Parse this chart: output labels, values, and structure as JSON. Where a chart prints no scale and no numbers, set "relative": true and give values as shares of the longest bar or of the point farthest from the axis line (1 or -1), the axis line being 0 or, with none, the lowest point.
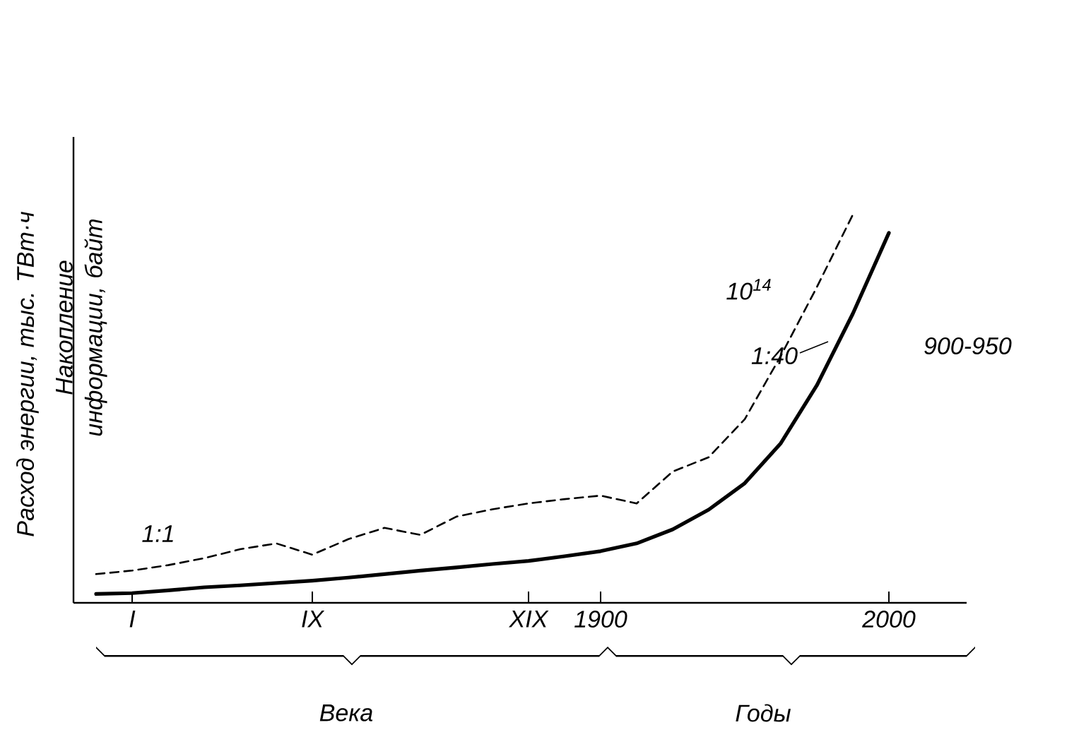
{
  "chart_data": {
    "type": "line",
    "relative": true,
    "ylabel": "Расход энергии, тыс. ТВт·ч",
    "y2label": "Накопление информации, байт",
    "categories": [
      null,
      "I",
      null,
      null,
      null,
      null,
      "IX",
      null,
      null,
      null,
      null,
      null,
      "XIX",
      null,
      "1900",
      null,
      null,
      null,
      null,
      null,
      null,
      null,
      "2000"
    ],
    "series": [
      {
        "color": "#000000",
        "line_style": "solid",
        "values": [
          0.023,
          0.025,
          0.032,
          0.04,
          0.045,
          0.051,
          0.057,
          0.065,
          0.074,
          0.083,
          0.091,
          0.1,
          0.108,
          0.12,
          0.133,
          0.153,
          0.189,
          0.24,
          0.308,
          0.411,
          0.56,
          0.745,
          0.953
        ]
      },
      {
        "color": "#000000",
        "line_style": "dashed",
        "values": [
          0.074,
          0.083,
          0.097,
          0.115,
          0.138,
          0.153,
          0.124,
          0.164,
          0.193,
          0.175,
          0.222,
          0.241,
          0.256,
          0.267,
          0.276,
          0.256,
          0.338,
          0.375,
          0.473,
          0.636,
          0.813,
          1.0,
          null
        ]
      }
    ],
    "annotations": [
      "1:1",
      "10$^{14}$",
      "1:40",
      "900-950",
      "Века",
      "Годы"
    ],
    "grid": false
  }
}
